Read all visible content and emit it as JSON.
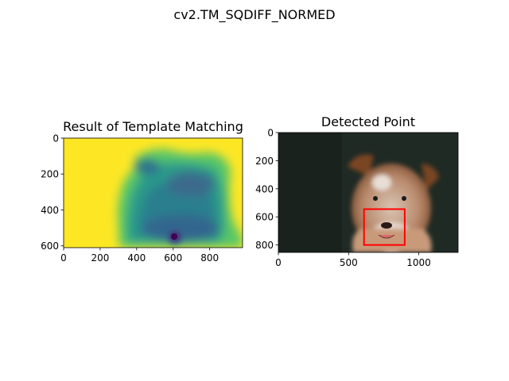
{
  "figure": {
    "suptitle": "cv2.TM_SQDIFF_NORMED"
  },
  "chart_data": [
    {
      "type": "heatmap",
      "title": "Result of Template Matching",
      "colormap": "viridis",
      "xlim": [
        0,
        980
      ],
      "ylim": [
        0,
        610
      ],
      "y_inverted": true,
      "xticks": [
        0,
        200,
        400,
        600,
        800
      ],
      "yticks": [
        0,
        200,
        400,
        600
      ],
      "minimum": {
        "x": 610,
        "y": 545
      },
      "grid": false
    },
    {
      "type": "image",
      "title": "Detected Point",
      "xlim": [
        0,
        1280
      ],
      "ylim": [
        0,
        853
      ],
      "y_inverted": true,
      "xticks": [
        0,
        500,
        1000
      ],
      "yticks": [
        0,
        200,
        400,
        600,
        800
      ],
      "detection_box": {
        "x0": 610,
        "y0": 545,
        "x1": 900,
        "y1": 800,
        "color": "#ff0000"
      },
      "grid": false
    }
  ]
}
